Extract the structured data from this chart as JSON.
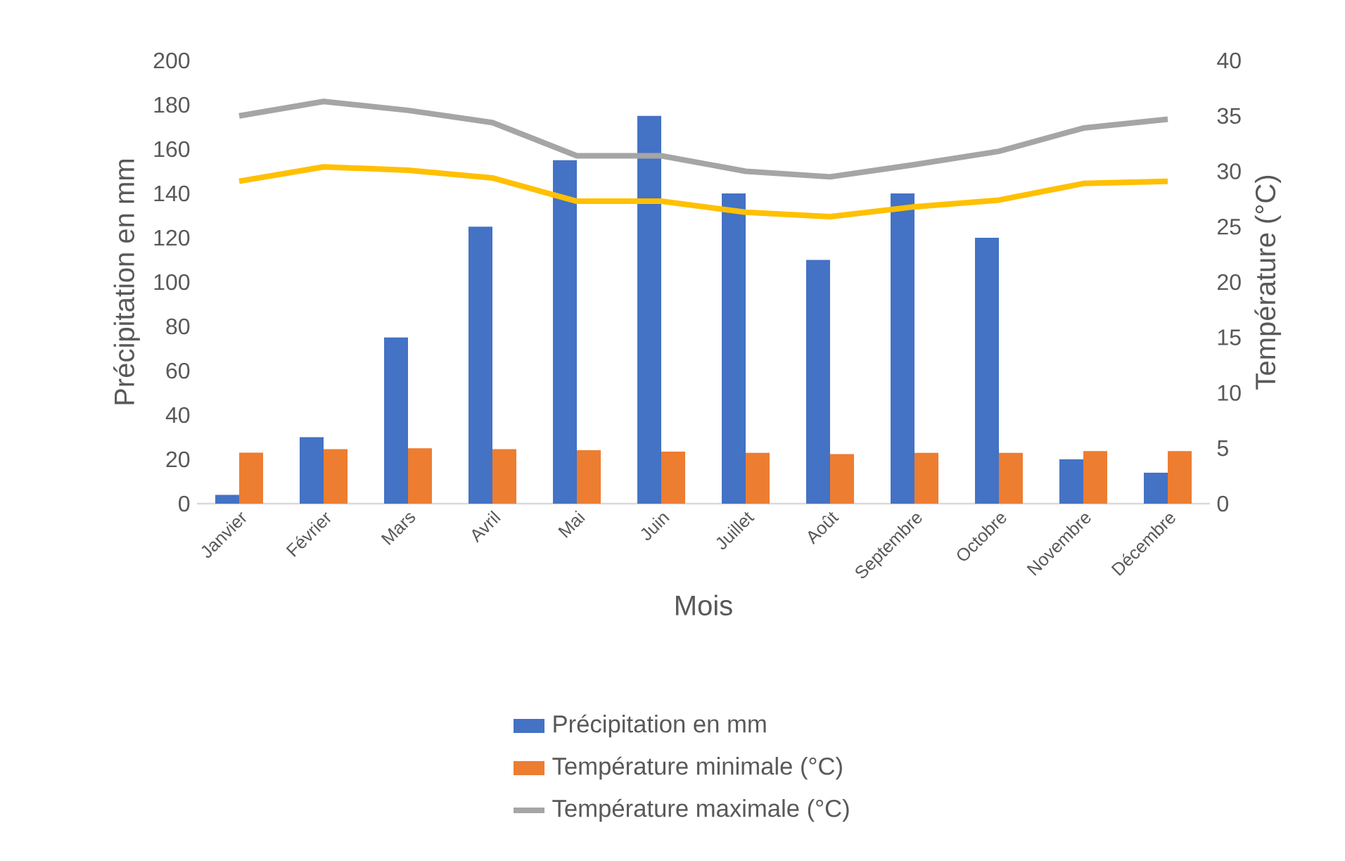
{
  "chart_data": {
    "type": "bar",
    "xlabel": "Mois",
    "ylabel": "Précipitation en mm",
    "y2label": "Température (°C)",
    "categories": [
      "Janvier",
      "Février",
      "Mars",
      "Avril",
      "Mai",
      "Juin",
      "Juillet",
      "Août",
      "Septembre",
      "Octobre",
      "Novembre",
      "Décembre"
    ],
    "series": [
      {
        "name": "Précipitation en mm",
        "axis": "y",
        "color": "#4472c4",
        "values": [
          4,
          30,
          75,
          125,
          155,
          175,
          140,
          110,
          140,
          120,
          20,
          14
        ]
      },
      {
        "name": "Température minimale (°C)",
        "axis": "y",
        "color": "#ed7d31",
        "values": [
          23,
          24.6,
          25,
          24.6,
          24.1,
          23.5,
          22.9,
          22.4,
          22.9,
          22.9,
          23.7,
          23.7
        ]
      },
      {
        "name": "Température maximale (°C)",
        "type": "line",
        "axis": "y2",
        "color": "#a5a5a5",
        "values": [
          35,
          36.3,
          35.5,
          34.4,
          31.4,
          31.4,
          30,
          29.5,
          30.6,
          31.8,
          33.9,
          34.7
        ]
      },
      {
        "type": "line",
        "axis": "y2",
        "color": "#ffc000",
        "values": [
          29.1,
          30.4,
          30.1,
          29.4,
          27.3,
          27.3,
          26.3,
          25.9,
          26.8,
          27.4,
          28.9,
          29.1
        ]
      }
    ],
    "ylim": [
      0,
      200
    ],
    "yticks": [
      0,
      20,
      40,
      60,
      80,
      100,
      120,
      140,
      160,
      180,
      200
    ],
    "y2lim": [
      0,
      40
    ],
    "y2ticks": [
      0,
      5,
      10,
      15,
      20,
      25,
      30,
      35,
      40
    ],
    "legend": "bottom"
  }
}
